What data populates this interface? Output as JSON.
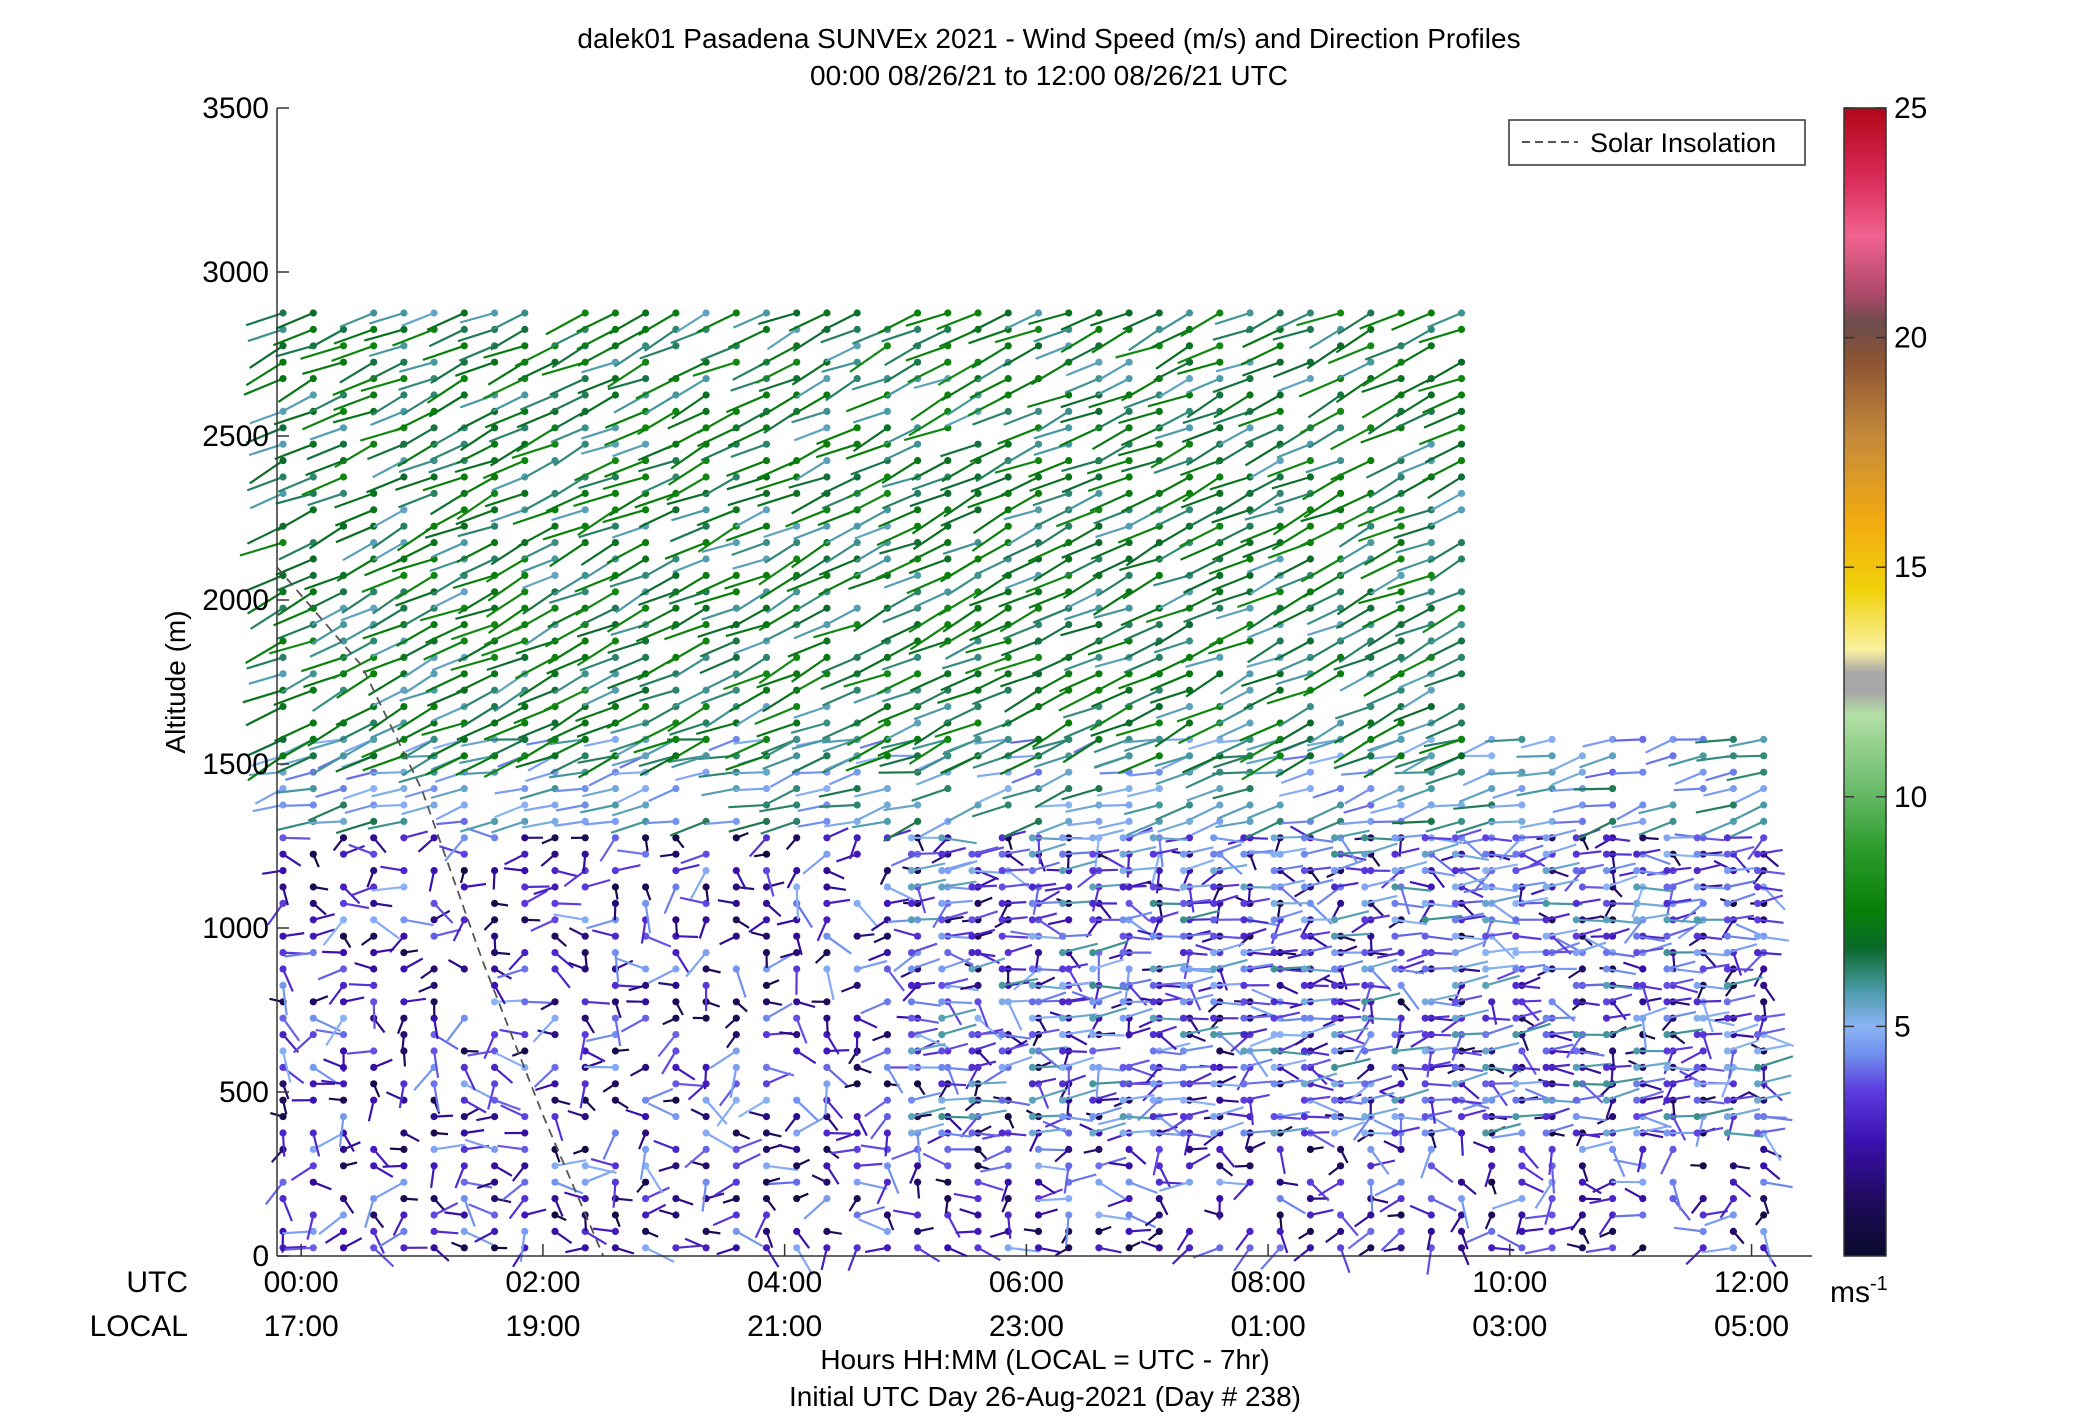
{
  "chart_data": {
    "type": "wind_profile_barbs",
    "title": "dalek01 Pasadena SUNVEx 2021 - Wind Speed (m/s) and Direction Profiles",
    "subtitle": "00:00 08/26/21 to 12:00 08/26/21  UTC",
    "ylabel": "Altitude (m)",
    "xlabel": "Hours HH:MM  (LOCAL = UTC - 7hr)",
    "xlabel2": "Initial UTC Day 26-Aug-2021 (Day # 238)",
    "row_labels": {
      "utc": "UTC",
      "local": "LOCAL"
    },
    "ylim": [
      0,
      3500
    ],
    "yticks": [
      "0",
      "500",
      "1000",
      "1500",
      "2000",
      "2500",
      "3000",
      "3500"
    ],
    "xlim_hours": [
      -0.2,
      12.5
    ],
    "xticks_utc": [
      "00:00",
      "02:00",
      "04:00",
      "06:00",
      "08:00",
      "10:00",
      "12:00"
    ],
    "xticks_local": [
      "17:00",
      "19:00",
      "21:00",
      "23:00",
      "01:00",
      "03:00",
      "05:00"
    ],
    "legend": {
      "position": "top-right",
      "label": "Solar Insolation"
    },
    "solar_insolation": {
      "x_hours": [
        -0.2,
        0.5,
        1.0,
        1.5,
        2.0,
        2.5
      ],
      "y_m": [
        2100,
        1800,
        1420,
        900,
        430,
        0
      ]
    },
    "colorbar": {
      "range": [
        0,
        25
      ],
      "ticks": [
        "5",
        "10",
        "15",
        "20",
        "25"
      ],
      "unit": "ms",
      "unit_exponent": "-1",
      "stops": [
        [
          0,
          "#0a0a2a"
        ],
        [
          1.2,
          "#1f0b5c"
        ],
        [
          2.5,
          "#3a10b0"
        ],
        [
          3.6,
          "#5e3ce0"
        ],
        [
          4.4,
          "#7090ee"
        ],
        [
          5.0,
          "#8cb4f5"
        ],
        [
          5.8,
          "#4a9aa6"
        ],
        [
          6.7,
          "#0a6a2a"
        ],
        [
          7.5,
          "#078007"
        ],
        [
          8.8,
          "#2a9a2a"
        ],
        [
          10.5,
          "#79c379"
        ],
        [
          11.8,
          "#b3dfa5"
        ],
        [
          12.3,
          "#a7a7a7"
        ],
        [
          12.7,
          "#a7a7a7"
        ],
        [
          13.2,
          "#fbf0a0"
        ],
        [
          14.5,
          "#f0d20a"
        ],
        [
          16.0,
          "#f2aa10"
        ],
        [
          17.8,
          "#c68a3a"
        ],
        [
          19.5,
          "#8c5434"
        ],
        [
          20.3,
          "#6d4c4c"
        ],
        [
          21.0,
          "#b04a6a"
        ],
        [
          22.2,
          "#f06290"
        ],
        [
          23.5,
          "#d82a56"
        ],
        [
          25,
          "#b00818"
        ]
      ]
    },
    "layers": [
      {
        "t_range": [
          -0.2,
          12.1
        ],
        "alt_range": [
          0,
          1280
        ],
        "speed_range": [
          0.5,
          5.0
        ],
        "direction_deg": [
          60,
          300
        ]
      },
      {
        "t_range": [
          5.0,
          12.1
        ],
        "alt_range": [
          350,
          1300
        ],
        "speed_range": [
          3.0,
          6.0
        ],
        "direction_deg": [
          70,
          100
        ]
      },
      {
        "t_range": [
          -0.2,
          12.1
        ],
        "alt_range": [
          1300,
          1600
        ],
        "speed_range": [
          4.0,
          6.5
        ],
        "direction_deg": [
          240,
          270
        ]
      },
      {
        "t_range": [
          -0.2,
          9.7
        ],
        "alt_range": [
          1500,
          2900
        ],
        "speed_range": [
          5.5,
          8.0
        ],
        "direction_deg": [
          235,
          255
        ]
      }
    ]
  }
}
